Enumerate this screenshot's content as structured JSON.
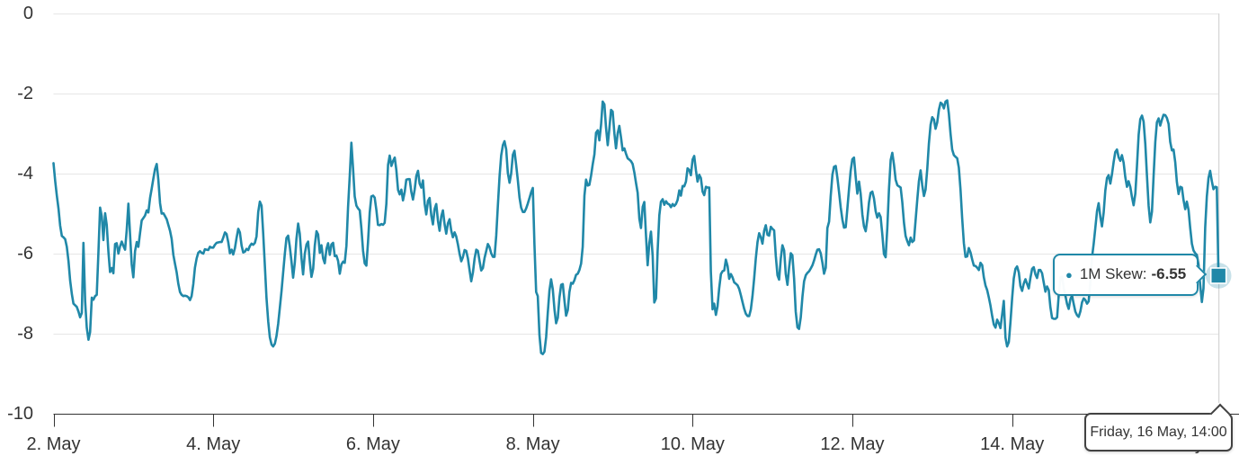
{
  "chart_data": {
    "type": "line",
    "title": "",
    "series": [
      {
        "name": "1M Skew",
        "color": "#2088a8",
        "values": [
          -3.74,
          -4.19,
          -4.55,
          -4.88,
          -5.3,
          -5.56,
          -5.59,
          -5.64,
          -5.83,
          -6.19,
          -6.67,
          -7.01,
          -7.25,
          -7.29,
          -7.33,
          -7.45,
          -7.59,
          -7.48,
          -5.73,
          -7.19,
          -7.85,
          -8.15,
          -7.96,
          -7.1,
          -7.15,
          -7.06,
          -7.03,
          -5.95,
          -4.85,
          -5.07,
          -5.66,
          -4.99,
          -5.28,
          -5.96,
          -6.46,
          -6.36,
          -6.49,
          -5.76,
          -5.74,
          -6.0,
          -5.82,
          -5.7,
          -5.81,
          -5.9,
          -5.42,
          -4.75,
          -5.5,
          -6.27,
          -6.59,
          -5.94,
          -5.71,
          -5.83,
          -5.48,
          -5.17,
          -5.11,
          -5.05,
          -4.92,
          -4.97,
          -4.61,
          -4.38,
          -4.12,
          -3.89,
          -3.76,
          -4.15,
          -4.74,
          -5.0,
          -4.99,
          -5.06,
          -5.14,
          -5.28,
          -5.43,
          -5.63,
          -6.03,
          -6.25,
          -6.47,
          -6.75,
          -6.96,
          -7.03,
          -7.06,
          -7.05,
          -7.06,
          -7.09,
          -7.16,
          -7.06,
          -6.76,
          -6.35,
          -6.12,
          -5.98,
          -5.94,
          -5.98,
          -6.0,
          -5.89,
          -5.9,
          -5.91,
          -5.83,
          -5.85,
          -5.85,
          -5.78,
          -5.73,
          -5.72,
          -5.71,
          -5.71,
          -5.6,
          -5.47,
          -5.51,
          -5.72,
          -5.99,
          -5.9,
          -6.02,
          -5.86,
          -5.61,
          -5.38,
          -5.47,
          -5.8,
          -5.97,
          -5.95,
          -5.88,
          -5.91,
          -5.81,
          -5.75,
          -5.78,
          -5.73,
          -5.57,
          -4.96,
          -4.7,
          -4.8,
          -5.48,
          -6.31,
          -7.11,
          -7.69,
          -8.09,
          -8.27,
          -8.32,
          -8.25,
          -8.06,
          -7.75,
          -7.36,
          -6.94,
          -6.48,
          -6.0,
          -5.61,
          -5.55,
          -5.82,
          -6.2,
          -6.6,
          -6.22,
          -5.63,
          -5.25,
          -5.5,
          -6.11,
          -6.52,
          -6.0,
          -5.77,
          -5.7,
          -6.21,
          -6.58,
          -6.38,
          -5.8,
          -5.44,
          -5.52,
          -5.98,
          -5.79,
          -6.12,
          -6.24,
          -5.88,
          -5.74,
          -6.03,
          -5.77,
          -5.73,
          -6.06,
          -6.05,
          -6.18,
          -6.5,
          -6.27,
          -6.2,
          -6.23,
          -5.8,
          -4.84,
          -4.05,
          -3.23,
          -3.88,
          -4.57,
          -4.8,
          -4.87,
          -4.92,
          -5.36,
          -5.93,
          -6.24,
          -6.3,
          -5.71,
          -4.97,
          -4.57,
          -4.55,
          -4.6,
          -4.91,
          -5.28,
          -5.29,
          -5.26,
          -5.28,
          -5.23,
          -4.76,
          -3.78,
          -3.55,
          -3.81,
          -3.69,
          -3.6,
          -3.91,
          -4.41,
          -4.52,
          -4.4,
          -4.67,
          -4.46,
          -4.15,
          -4.14,
          -4.14,
          -4.46,
          -4.65,
          -4.4,
          -4.06,
          -3.93,
          -4.25,
          -4.35,
          -4.17,
          -4.75,
          -5.02,
          -4.68,
          -4.61,
          -5.05,
          -5.27,
          -4.88,
          -4.76,
          -5.18,
          -5.43,
          -5.07,
          -4.92,
          -5.27,
          -5.5,
          -5.24,
          -5.14,
          -5.43,
          -5.59,
          -5.47,
          -5.57,
          -5.77,
          -6.0,
          -6.19,
          -6.09,
          -5.91,
          -5.93,
          -6.12,
          -6.42,
          -6.69,
          -6.47,
          -6.13,
          -5.9,
          -5.93,
          -6.19,
          -6.42,
          -6.36,
          -6.11,
          -5.93,
          -5.76,
          -5.84,
          -5.99,
          -6.08,
          -6.08,
          -5.55,
          -4.81,
          -4.07,
          -3.55,
          -3.29,
          -3.19,
          -3.4,
          -3.98,
          -4.23,
          -4.0,
          -3.53,
          -3.43,
          -3.79,
          -4.16,
          -4.6,
          -4.85,
          -4.96,
          -4.96,
          -4.87,
          -4.75,
          -4.61,
          -4.47,
          -4.36,
          -5.77,
          -6.96,
          -7.06,
          -8.04,
          -8.48,
          -8.51,
          -8.45,
          -8.09,
          -7.49,
          -6.92,
          -6.64,
          -6.89,
          -7.4,
          -7.74,
          -7.6,
          -7.1,
          -6.78,
          -6.76,
          -7.18,
          -7.55,
          -7.41,
          -6.96,
          -6.73,
          -6.75,
          -6.66,
          -6.53,
          -6.5,
          -6.41,
          -6.25,
          -5.83,
          -4.55,
          -4.15,
          -4.3,
          -4.28,
          -4.05,
          -3.77,
          -3.52,
          -2.98,
          -2.92,
          -3.17,
          -2.78,
          -2.2,
          -2.27,
          -2.85,
          -3.29,
          -2.88,
          -2.41,
          -2.45,
          -2.99,
          -3.37,
          -2.99,
          -2.81,
          -3.1,
          -3.42,
          -3.37,
          -3.5,
          -3.62,
          -3.65,
          -3.69,
          -3.76,
          -3.97,
          -4.24,
          -4.48,
          -5.13,
          -5.36,
          -4.83,
          -4.71,
          -5.56,
          -6.29,
          -5.73,
          -5.45,
          -6.06,
          -7.22,
          -7.12,
          -5.93,
          -5.04,
          -4.7,
          -4.64,
          -4.78,
          -4.69,
          -4.75,
          -4.77,
          -4.84,
          -4.76,
          -4.81,
          -4.76,
          -4.66,
          -4.42,
          -4.55,
          -4.31,
          -4.32,
          -4.2,
          -3.87,
          -3.91,
          -4.04,
          -3.65,
          -3.56,
          -3.92,
          -4.2,
          -4.03,
          -4.11,
          -4.45,
          -4.54,
          -4.33,
          -4.35,
          -4.35,
          -6.45,
          -7.39,
          -7.25,
          -7.53,
          -7.32,
          -6.86,
          -6.51,
          -6.44,
          -6.42,
          -6.15,
          -6.31,
          -6.63,
          -6.51,
          -6.59,
          -6.72,
          -6.75,
          -6.79,
          -6.88,
          -7.04,
          -7.21,
          -7.38,
          -7.5,
          -7.56,
          -7.56,
          -7.39,
          -7.06,
          -6.61,
          -6.12,
          -5.71,
          -5.49,
          -5.59,
          -5.75,
          -5.43,
          -5.29,
          -5.53,
          -5.55,
          -5.33,
          -5.38,
          -5.42,
          -6.05,
          -6.54,
          -6.65,
          -6.12,
          -5.79,
          -5.92,
          -6.51,
          -6.78,
          -6.35,
          -5.99,
          -6.04,
          -6.63,
          -7.45,
          -7.84,
          -7.88,
          -7.59,
          -7.07,
          -6.69,
          -6.54,
          -6.48,
          -6.44,
          -6.37,
          -6.29,
          -6.17,
          -6.02,
          -5.9,
          -5.89,
          -5.99,
          -6.23,
          -6.5,
          -6.35,
          -5.36,
          -5.2,
          -4.56,
          -4.03,
          -3.83,
          -3.81,
          -4.1,
          -4.47,
          -4.84,
          -5.15,
          -5.35,
          -5.34,
          -4.88,
          -4.38,
          -3.93,
          -3.64,
          -3.6,
          -4.09,
          -4.5,
          -4.2,
          -4.5,
          -5.02,
          -5.32,
          -5.44,
          -5.15,
          -4.72,
          -4.48,
          -4.45,
          -4.62,
          -4.94,
          -5.1,
          -4.99,
          -5.08,
          -5.52,
          -6.01,
          -6.09,
          -5.34,
          -4.39,
          -3.66,
          -3.48,
          -3.78,
          -4.15,
          -4.29,
          -4.32,
          -4.35,
          -4.71,
          -5.23,
          -5.56,
          -5.69,
          -5.79,
          -5.6,
          -5.71,
          -5.67,
          -5.17,
          -4.65,
          -4.19,
          -3.92,
          -4.29,
          -4.56,
          -4.4,
          -3.88,
          -3.25,
          -2.78,
          -2.59,
          -2.65,
          -2.88,
          -2.72,
          -2.41,
          -2.23,
          -2.26,
          -2.37,
          -2.2,
          -2.17,
          -2.5,
          -3.01,
          -3.4,
          -3.54,
          -3.58,
          -3.62,
          -3.85,
          -4.41,
          -5.11,
          -5.74,
          -6.08,
          -6.07,
          -5.86,
          -5.97,
          -6.15,
          -6.3,
          -6.31,
          -6.35,
          -6.41,
          -6.23,
          -6.29,
          -6.59,
          -6.8,
          -6.91,
          -7.1,
          -7.3,
          -7.56,
          -7.77,
          -7.85,
          -7.65,
          -7.74,
          -7.86,
          -7.52,
          -7.18,
          -8.1,
          -8.32,
          -8.21,
          -7.72,
          -7.11,
          -6.62,
          -6.38,
          -6.32,
          -6.47,
          -6.81,
          -6.93,
          -6.75,
          -6.64,
          -6.75,
          -6.87,
          -6.61,
          -6.38,
          -6.34,
          -6.52,
          -6.61,
          -6.41,
          -6.41,
          -6.49,
          -6.72,
          -6.95,
          -6.82,
          -6.91,
          -7.33,
          -7.61,
          -7.63,
          -7.63,
          -7.59,
          -7.04,
          -6.59,
          -6.58,
          -6.86,
          -7.05,
          -7.26,
          -7.38,
          -7.14,
          -7.05,
          -7.26,
          -7.45,
          -7.54,
          -7.58,
          -7.44,
          -7.22,
          -7.12,
          -7.16,
          -7.25,
          -7.19,
          -6.71,
          -6.1,
          -5.75,
          -5.36,
          -4.94,
          -4.74,
          -5.08,
          -5.32,
          -4.97,
          -4.43,
          -4.11,
          -4.04,
          -4.25,
          -4.02,
          -3.71,
          -3.46,
          -3.4,
          -3.59,
          -3.68,
          -3.54,
          -3.73,
          -4.08,
          -4.33,
          -4.19,
          -4.33,
          -4.58,
          -4.79,
          -4.5,
          -3.82,
          -3.03,
          -2.64,
          -2.55,
          -2.7,
          -3.26,
          -4.04,
          -4.81,
          -5.22,
          -4.95,
          -4.07,
          -3.21,
          -2.72,
          -2.62,
          -2.8,
          -2.65,
          -2.53,
          -2.54,
          -2.61,
          -2.76,
          -3.21,
          -3.42,
          -3.4,
          -3.72,
          -4.21,
          -4.51,
          -4.33,
          -4.35,
          -4.66,
          -4.89,
          -4.7,
          -4.91,
          -5.35,
          -5.75,
          -5.92,
          -5.99,
          -6.03,
          -6.28,
          -6.77,
          -7.21,
          -6.87,
          -5.35,
          -4.58,
          -4.11,
          -3.93,
          -4.19,
          -4.39,
          -4.33,
          -4.34,
          -6.55
        ]
      }
    ],
    "x_axis": {
      "tick_labels": [
        "2. May",
        "4. May",
        "6. May",
        "8. May",
        "10. May",
        "12. May",
        "14. May",
        "16. May"
      ],
      "points_per_day": 48,
      "points_per_tick": 96
    },
    "y_axis": {
      "tick_labels": [
        "0",
        "-2",
        "-4",
        "-6",
        "-8",
        "-10"
      ],
      "ticks": [
        0,
        -2,
        -4,
        -6,
        -8,
        -10
      ],
      "ylim": [
        -10,
        0
      ]
    },
    "grid": "horizontal",
    "legend": "none",
    "last_point": {
      "value": -6.55,
      "time_label": "Friday, 16 May, 14:00"
    }
  },
  "tooltip": {
    "bullet": "●",
    "series_label": "1M Skew:",
    "value": "-6.55"
  },
  "date_tooltip": {
    "text": "Friday, 16 May, 14:00"
  },
  "colors": {
    "series": "#2088a8",
    "halo": "rgba(32,136,168,0.25)",
    "grid": "#e6e6e6",
    "crosshair": "#cccccc",
    "axis_line": "#333333",
    "label_text": "#333333",
    "tooltip_border": "#2088a8",
    "date_tooltip_border": "#424242",
    "background": "#ffffff"
  }
}
